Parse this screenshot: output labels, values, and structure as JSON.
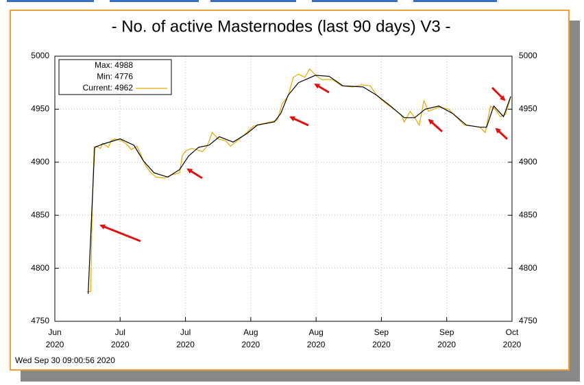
{
  "chart_data": {
    "type": "line",
    "title": "- No. of active Masternodes (last 90 days) V3 -",
    "footer": "Wed Sep 30 09:00:56 2020",
    "legend_lines": [
      "Max: 4988",
      "Min: 4776",
      "Current: 4962"
    ],
    "legend_color": "#e0a800",
    "xlim": [
      0,
      7
    ],
    "xticks": [
      {
        "value": 0,
        "label": "Jun\n2020"
      },
      {
        "value": 1,
        "label": "Jul\n2020"
      },
      {
        "value": 2,
        "label": "Jul\n2020"
      },
      {
        "value": 3,
        "label": "Aug\n2020"
      },
      {
        "value": 4,
        "label": "Aug\n2020"
      },
      {
        "value": 5,
        "label": "Sep\n2020"
      },
      {
        "value": 6,
        "label": "Sep\n2020"
      },
      {
        "value": 7,
        "label": "Oct\n2020"
      }
    ],
    "ylim": [
      4750,
      5000
    ],
    "yticks": [
      4750,
      4800,
      4850,
      4900,
      4950,
      5000
    ],
    "grid": true,
    "series": [
      {
        "color": "#e0a800",
        "x": [
          0.49,
          0.55,
          0.57,
          0.6,
          0.63,
          0.7,
          0.73,
          0.82,
          0.86,
          0.92,
          1.03,
          1.1,
          1.17,
          1.26,
          1.31,
          1.39,
          1.47,
          1.55,
          1.68,
          1.78,
          1.91,
          1.95,
          2.01,
          2.1,
          2.26,
          2.33,
          2.41,
          2.5,
          2.62,
          2.69,
          2.81,
          2.94,
          3.04,
          3.15,
          3.31,
          3.41,
          3.48,
          3.57,
          3.65,
          3.73,
          3.83,
          3.9,
          4.01,
          4.09,
          4.25,
          4.39,
          4.56,
          4.7,
          4.83,
          4.93,
          5.04,
          5.19,
          5.3,
          5.35,
          5.44,
          5.51,
          5.58,
          5.65,
          5.72,
          5.88,
          6.03,
          6.14,
          6.27,
          6.4,
          6.51,
          6.59,
          6.67,
          6.74,
          6.82,
          6.9,
          6.95,
          6.98
        ],
        "values": [
          4778,
          4778,
          4850,
          4913,
          4915,
          4913,
          4918,
          4914,
          4920,
          4922,
          4920,
          4917,
          4912,
          4915,
          4908,
          4897,
          4890,
          4886,
          4885,
          4888,
          4890,
          4906,
          4911,
          4913,
          4910,
          4915,
          4928,
          4922,
          4920,
          4915,
          4921,
          4928,
          4934,
          4936,
          4938,
          4940,
          4955,
          4962,
          4980,
          4983,
          4980,
          4988,
          4981,
          4978,
          4978,
          4972,
          4971,
          4973,
          4972,
          4963,
          4957,
          4950,
          4945,
          4938,
          4948,
          4942,
          4935,
          4958,
          4948,
          4952,
          4950,
          4943,
          4935,
          4934,
          4933,
          4928,
          4953,
          4950,
          4943,
          4945,
          4955,
          4962
        ]
      },
      {
        "color": "#000000",
        "x": [
          0.51,
          0.61,
          0.73,
          1.0,
          1.21,
          1.36,
          1.52,
          1.73,
          1.91,
          2.05,
          2.2,
          2.36,
          2.52,
          2.73,
          2.94,
          3.1,
          3.36,
          3.46,
          3.57,
          3.73,
          3.99,
          4.2,
          4.41,
          4.72,
          4.93,
          5.14,
          5.35,
          5.51,
          5.67,
          5.88,
          6.09,
          6.3,
          6.51,
          6.61,
          6.72,
          6.87,
          6.98
        ],
        "values": [
          4776,
          4914,
          4917,
          4922,
          4916,
          4901,
          4890,
          4886,
          4893,
          4906,
          4914,
          4916,
          4924,
          4919,
          4927,
          4935,
          4938,
          4946,
          4963,
          4975,
          4982,
          4981,
          4972,
          4971,
          4963,
          4953,
          4942,
          4942,
          4950,
          4953,
          4946,
          4935,
          4933,
          4933,
          4953,
          4943,
          4962
        ]
      }
    ]
  }
}
